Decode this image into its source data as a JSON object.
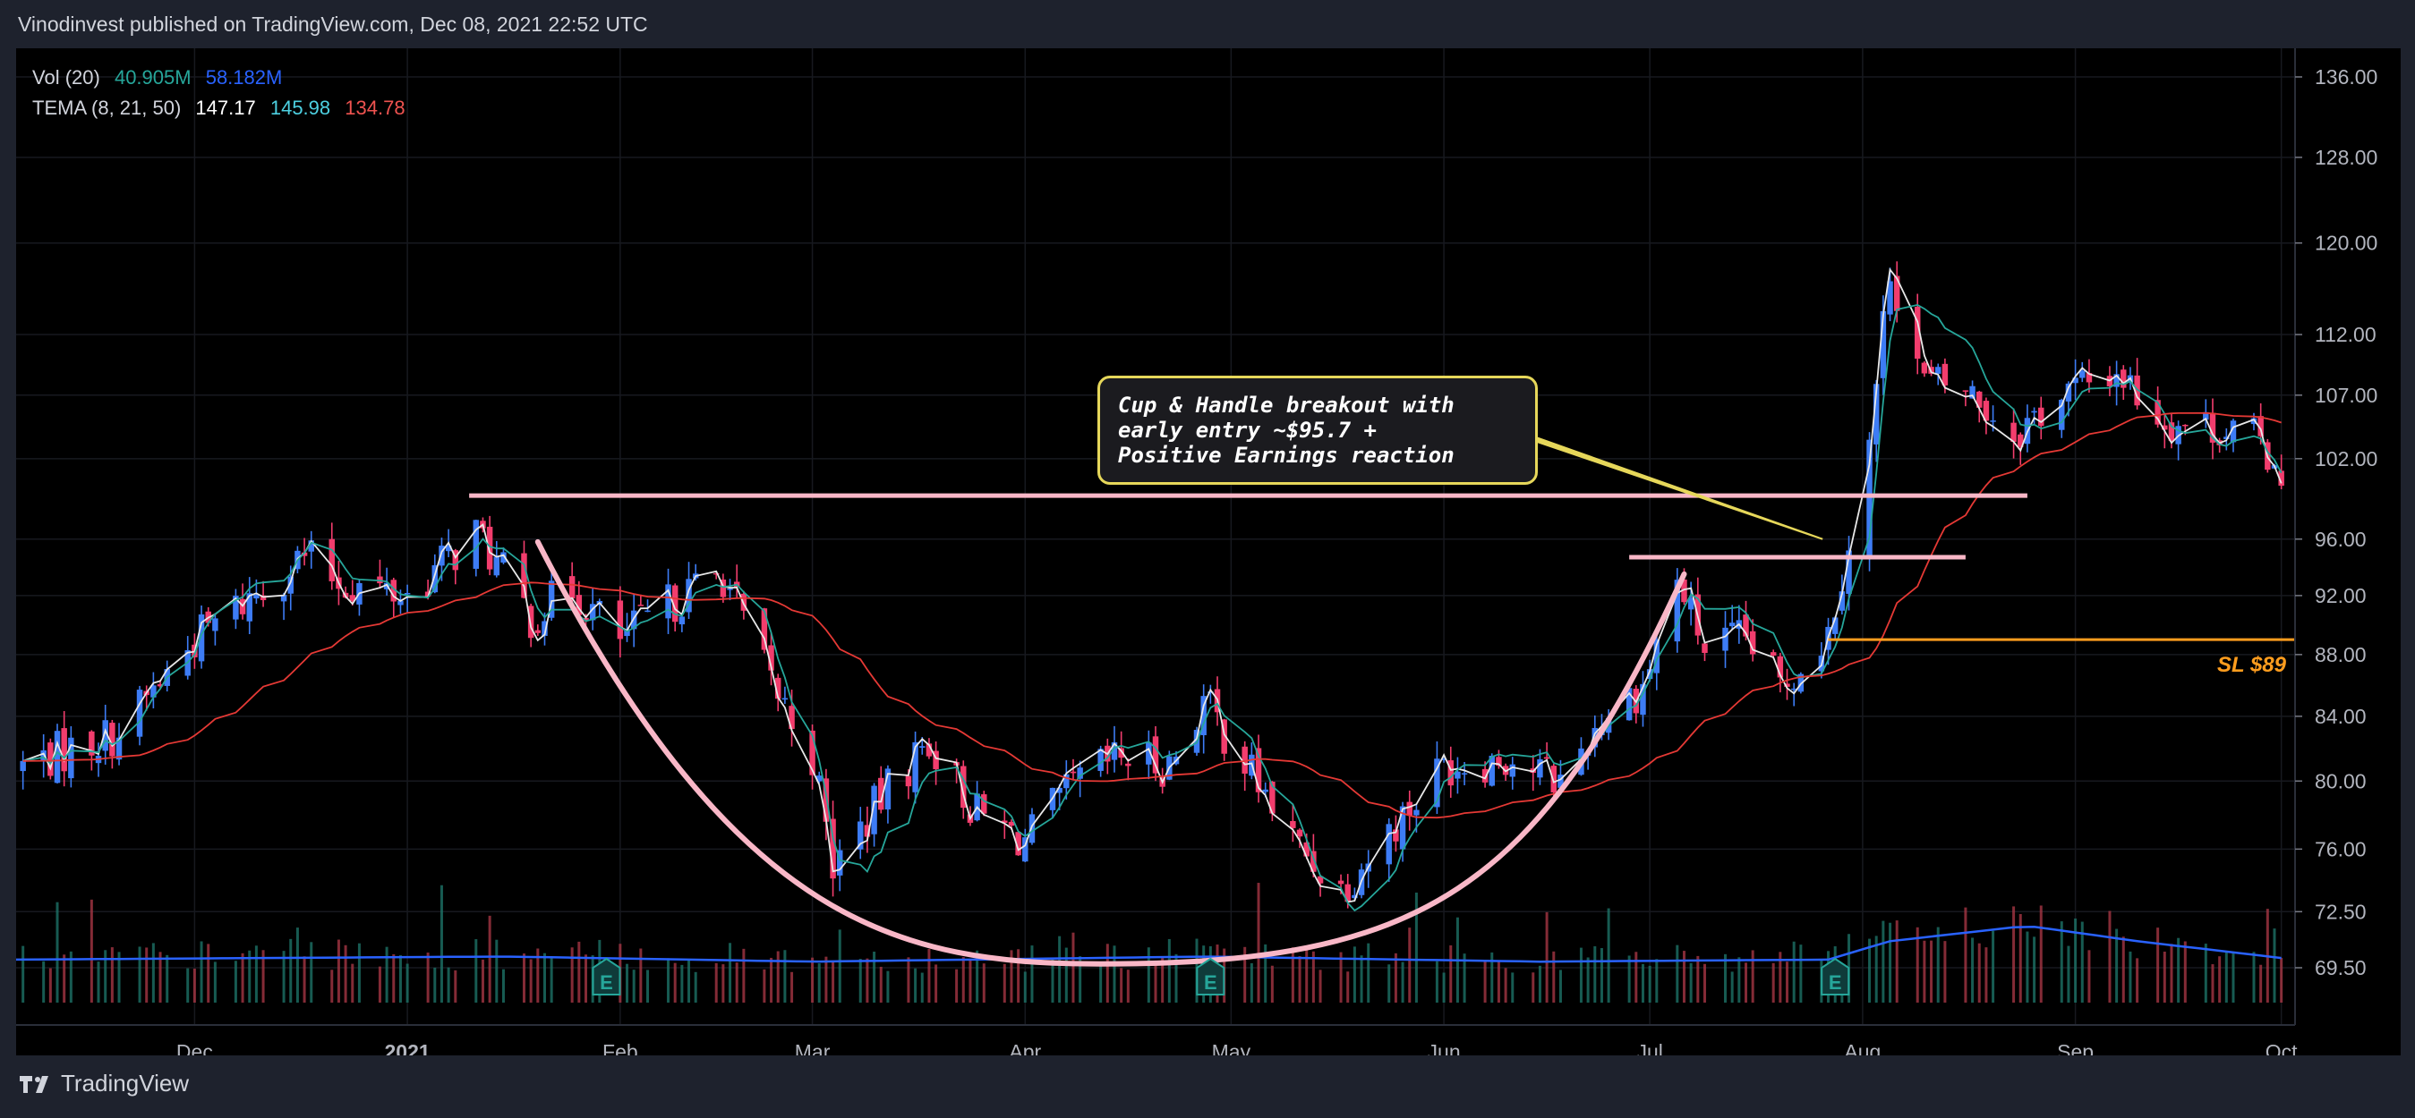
{
  "header": {
    "text": "Vinodinvest published on TradingView.com, Dec 08, 2021 22:52 UTC"
  },
  "legend": {
    "vol_label": "Vol (20)",
    "vol_value_1": "40.905M",
    "vol_value_2": "58.182M",
    "tema_label": "TEMA (8, 21, 50)",
    "tema_value_1": "147.17",
    "tema_value_2": "145.98",
    "tema_value_3": "134.78"
  },
  "annotation": {
    "line1": "Cup & Handle breakout with",
    "line2": "early entry ~$95.7 +",
    "line3": "Positive Earnings reaction"
  },
  "stop_loss_label": "SL $89",
  "earnings_marker": "E",
  "footer": {
    "brand": "TradingView"
  },
  "colors": {
    "up": "#3d7cf5",
    "down": "#f23d6d",
    "tema_fast": "#e8e8e8",
    "tema_mid": "#26a69a",
    "tema_slow": "#e53935",
    "cup": "#f9b7c7",
    "resistance": "#f9b7c7",
    "stop_loss": "#ff9d1e",
    "callout_border": "#e6d75a"
  },
  "chart_data": {
    "type": "candlestick",
    "price_scale": "log",
    "y_ticks": [
      136.0,
      128.0,
      120.0,
      112.0,
      107.0,
      102.0,
      96.0,
      92.0,
      88.0,
      84.0,
      80.0,
      76.0,
      72.5,
      69.5
    ],
    "y_tick_labels": [
      "136.00",
      "128.00",
      "120.00",
      "112.00",
      "107.00",
      "102.00",
      "96.00",
      "92.00",
      "88.00",
      "84.00",
      "80.00",
      "76.00",
      "72.50",
      "69.50"
    ],
    "x_ticks": [
      {
        "label": "Dec",
        "date": "2020-12-01"
      },
      {
        "label": "2021",
        "date": "2021-01-01"
      },
      {
        "label": "Feb",
        "date": "2021-02-01"
      },
      {
        "label": "Mar",
        "date": "2021-03-01"
      },
      {
        "label": "Apr",
        "date": "2021-04-01"
      },
      {
        "label": "May",
        "date": "2021-05-01"
      },
      {
        "label": "Jun",
        "date": "2021-06-01"
      },
      {
        "label": "Jul",
        "date": "2021-07-01"
      },
      {
        "label": "Aug",
        "date": "2021-08-01"
      },
      {
        "label": "Sep",
        "date": "2021-09-01"
      },
      {
        "label": "Oct",
        "date": "2021-10-01"
      }
    ],
    "x_range": [
      "2020-11-05",
      "2021-10-03"
    ],
    "price_path": [
      [
        "2020-11-05",
        80.8
      ],
      [
        "2020-11-20",
        83.0
      ],
      [
        "2020-12-01",
        89.0
      ],
      [
        "2020-12-08",
        91.5
      ],
      [
        "2020-12-17",
        94.8
      ],
      [
        "2020-12-22",
        93.0
      ],
      [
        "2021-01-01",
        92.0
      ],
      [
        "2021-01-11",
        96.5
      ],
      [
        "2021-01-19",
        90.5
      ],
      [
        "2021-01-25",
        92.5
      ],
      [
        "2021-02-01",
        89.0
      ],
      [
        "2021-02-10",
        92.0
      ],
      [
        "2021-02-16",
        93.5
      ],
      [
        "2021-02-22",
        87.0
      ],
      [
        "2021-03-01",
        81.5
      ],
      [
        "2021-03-04",
        75.0
      ],
      [
        "2021-03-12",
        79.5
      ],
      [
        "2021-03-18",
        82.5
      ],
      [
        "2021-03-25",
        78.0
      ],
      [
        "2021-04-01",
        76.5
      ],
      [
        "2021-04-09",
        80.0
      ],
      [
        "2021-04-15",
        81.5
      ],
      [
        "2021-04-22",
        81.0
      ],
      [
        "2021-04-27",
        85.0
      ],
      [
        "2021-05-04",
        80.5
      ],
      [
        "2021-05-10",
        76.5
      ],
      [
        "2021-05-17",
        73.8
      ],
      [
        "2021-05-24",
        77.0
      ],
      [
        "2021-06-01",
        81.0
      ],
      [
        "2021-06-10",
        81.5
      ],
      [
        "2021-06-18",
        80.0
      ],
      [
        "2021-06-24",
        84.0
      ],
      [
        "2021-06-30",
        86.0
      ],
      [
        "2021-07-05",
        93.0
      ],
      [
        "2021-07-09",
        88.5
      ],
      [
        "2021-07-15",
        89.0
      ],
      [
        "2021-07-20",
        86.0
      ],
      [
        "2021-07-27",
        89.5
      ],
      [
        "2021-08-02",
        103.0
      ],
      [
        "2021-08-05",
        118.0
      ],
      [
        "2021-08-10",
        108.0
      ],
      [
        "2021-08-16",
        107.5
      ],
      [
        "2021-08-23",
        104.0
      ],
      [
        "2021-08-30",
        107.0
      ],
      [
        "2021-09-07",
        109.0
      ],
      [
        "2021-09-14",
        105.0
      ],
      [
        "2021-09-22",
        104.5
      ],
      [
        "2021-09-27",
        103.5
      ],
      [
        "2021-10-03",
        100.5
      ]
    ],
    "volume_path": [
      [
        "2020-11-05",
        0.42
      ],
      [
        "2021-01-15",
        0.45
      ],
      [
        "2021-03-01",
        0.4
      ],
      [
        "2021-04-27",
        0.45
      ],
      [
        "2021-06-15",
        0.4
      ],
      [
        "2021-07-27",
        0.42
      ],
      [
        "2021-08-05",
        0.6
      ],
      [
        "2021-08-25",
        0.75
      ],
      [
        "2021-09-10",
        0.6
      ],
      [
        "2021-10-03",
        0.42
      ]
    ],
    "earnings_dates": [
      "2021-01-30",
      "2021-04-28",
      "2021-07-28"
    ],
    "annotations": {
      "resistance_level": 99.2,
      "resistance_start": "2021-01-10",
      "resistance_end": "2021-08-25",
      "handle_level": 94.7,
      "handle_start": "2021-06-28",
      "handle_end": "2021-08-16",
      "stop_loss_level": 89.0,
      "stop_loss_start": "2021-07-27",
      "stop_loss_end": "2021-10-03",
      "cup": {
        "start": [
          "2021-01-20",
          95.8
        ],
        "bottom": [
          "2021-04-12",
          69.7
        ],
        "end": [
          "2021-07-06",
          93.5
        ]
      },
      "callout_target": [
        "2021-07-28",
        96.0
      ]
    }
  }
}
